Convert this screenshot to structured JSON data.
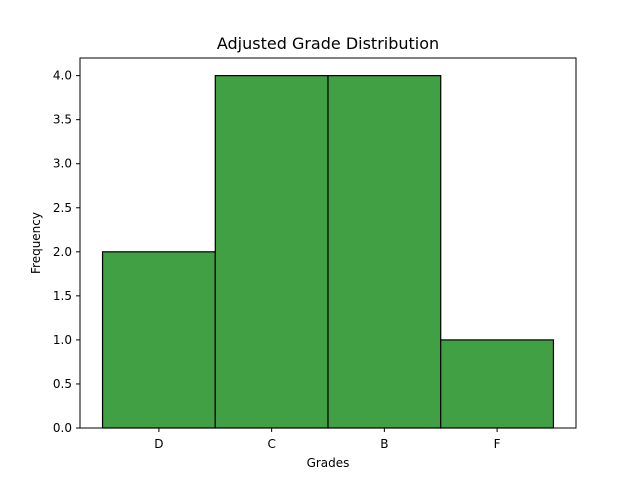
{
  "chart_data": {
    "type": "bar",
    "title": "Adjusted Grade Distribution",
    "xlabel": "Grades",
    "ylabel": "Frequency",
    "categories": [
      "D",
      "C",
      "B",
      "F"
    ],
    "values": [
      2,
      4,
      4,
      1
    ],
    "ylim": [
      0,
      4.2
    ],
    "yticks": [
      0.0,
      0.5,
      1.0,
      1.5,
      2.0,
      2.5,
      3.0,
      3.5,
      4.0
    ],
    "ytick_labels": [
      "0.0",
      "0.5",
      "1.0",
      "1.5",
      "2.0",
      "2.5",
      "3.0",
      "3.5",
      "4.0"
    ],
    "grid": false,
    "bar_color": "#41a043",
    "edge_color": "#000000"
  }
}
